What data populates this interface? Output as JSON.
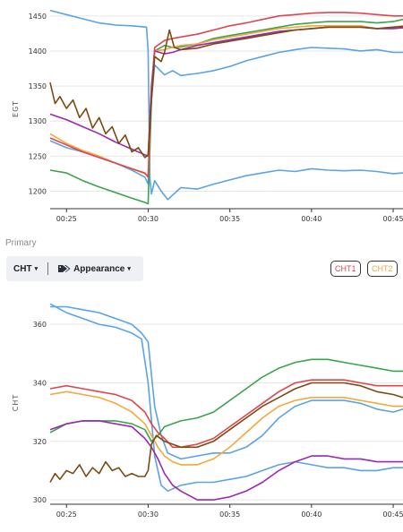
{
  "section_label": "Primary",
  "toolbar": {
    "cht_label": "CHT",
    "appearance_label": "Appearance"
  },
  "chips": [
    {
      "label": "CHT1",
      "color": "#e0454f"
    },
    {
      "label": "CHT2",
      "color": "#f2a93b"
    }
  ],
  "colors": {
    "blue": "#5aa3e6",
    "red": "#e0454f",
    "green": "#3aa34d",
    "orange": "#f2a93b",
    "purple": "#9c27b0",
    "brown": "#7a4a12"
  },
  "chart_data": [
    {
      "type": "line",
      "ylabel": "EGT",
      "ylim": [
        1175,
        1460
      ],
      "yticks": [
        1200,
        1250,
        1300,
        1350,
        1400,
        1450
      ],
      "xlim": [
        24.0,
        45.6
      ],
      "xticks": [
        "00:25",
        "00:30",
        "00:35",
        "00:40",
        "00:45"
      ],
      "xtick_values": [
        25,
        30,
        35,
        40,
        45
      ],
      "grid": true,
      "series": [
        {
          "color": "blue",
          "x": [
            24,
            25,
            26,
            27,
            28,
            29,
            29.9,
            30.0,
            30.1,
            30.2,
            30.4,
            30.8,
            31.2,
            32,
            33,
            34,
            35,
            36,
            37,
            38,
            39,
            40,
            41,
            42,
            43,
            44,
            45,
            45.6
          ],
          "y": [
            1458,
            1452,
            1446,
            1440,
            1437,
            1436,
            1434,
            1400,
            1220,
            1196,
            1215,
            1200,
            1188,
            1205,
            1203,
            1210,
            1216,
            1222,
            1226,
            1230,
            1228,
            1232,
            1230,
            1229,
            1230,
            1228,
            1225,
            1226
          ]
        },
        {
          "color": "blue",
          "x": [
            24,
            25,
            26,
            27,
            28,
            29,
            29.8,
            30.0,
            30.2,
            30.4,
            31,
            31.5,
            32,
            33,
            34,
            35,
            36,
            37,
            38,
            39,
            40,
            41,
            42,
            43,
            44,
            45,
            45.6
          ],
          "y": [
            1272,
            1262,
            1256,
            1248,
            1240,
            1230,
            1220,
            1210,
            1330,
            1380,
            1366,
            1372,
            1365,
            1368,
            1372,
            1378,
            1386,
            1392,
            1398,
            1402,
            1405,
            1404,
            1403,
            1400,
            1402,
            1398,
            1398
          ]
        },
        {
          "color": "green",
          "x": [
            24,
            25,
            26,
            27,
            28,
            29,
            29.8,
            30.0,
            30.2,
            30.4,
            31,
            31.5,
            32,
            33,
            34,
            35,
            36,
            37,
            38,
            39,
            40,
            41,
            42,
            43,
            44,
            45,
            45.6
          ],
          "y": [
            1230,
            1226,
            1215,
            1206,
            1198,
            1190,
            1184,
            1182,
            1330,
            1400,
            1408,
            1405,
            1406,
            1410,
            1418,
            1422,
            1426,
            1430,
            1434,
            1438,
            1440,
            1442,
            1442,
            1442,
            1440,
            1442,
            1445
          ]
        },
        {
          "color": "orange",
          "x": [
            24,
            25,
            26,
            27,
            28,
            29,
            29.8,
            30.0,
            30.2,
            30.4,
            31,
            31.5,
            32,
            33,
            34,
            35,
            36,
            37,
            38,
            39,
            40,
            41,
            42,
            43,
            44,
            45,
            45.6
          ],
          "y": [
            1282,
            1268,
            1258,
            1250,
            1240,
            1232,
            1225,
            1222,
            1340,
            1400,
            1402,
            1405,
            1408,
            1410,
            1416,
            1420,
            1424,
            1428,
            1432,
            1434,
            1436,
            1436,
            1436,
            1436,
            1432,
            1434,
            1436
          ]
        },
        {
          "color": "purple",
          "x": [
            24,
            25,
            26,
            27,
            28,
            29,
            29.8,
            30.0,
            30.2,
            30.4,
            31,
            31.5,
            32,
            33,
            34,
            35,
            36,
            37,
            38,
            39,
            40,
            41,
            42,
            43,
            44,
            45,
            45.6
          ],
          "y": [
            1310,
            1302,
            1292,
            1282,
            1270,
            1260,
            1252,
            1250,
            1350,
            1400,
            1396,
            1398,
            1402,
            1408,
            1412,
            1416,
            1420,
            1424,
            1428,
            1430,
            1432,
            1434,
            1434,
            1434,
            1432,
            1432,
            1433
          ]
        },
        {
          "color": "red",
          "x": [
            24,
            25,
            26,
            27,
            28,
            29,
            29.8,
            30.0,
            30.2,
            30.4,
            31,
            31.5,
            32,
            33,
            34,
            35,
            36,
            37,
            38,
            39,
            40,
            41,
            42,
            43,
            44,
            45,
            45.6
          ],
          "y": [
            1276,
            1266,
            1256,
            1248,
            1240,
            1232,
            1226,
            1220,
            1340,
            1405,
            1415,
            1418,
            1420,
            1424,
            1430,
            1436,
            1440,
            1445,
            1450,
            1452,
            1454,
            1455,
            1455,
            1454,
            1452,
            1450,
            1450
          ]
        },
        {
          "color": "brown",
          "x": [
            24,
            24.3,
            24.6,
            25,
            25.4,
            25.8,
            26.2,
            26.6,
            27,
            27.4,
            27.8,
            28.2,
            28.6,
            29,
            29.4,
            29.8,
            30.0,
            30.2,
            30.4,
            30.8,
            31,
            31.3,
            31.6,
            32,
            33,
            34,
            35,
            36,
            37,
            38,
            39,
            40,
            41,
            42,
            43,
            44,
            45,
            45.6
          ],
          "y": [
            1355,
            1325,
            1335,
            1318,
            1330,
            1305,
            1318,
            1290,
            1305,
            1282,
            1292,
            1268,
            1280,
            1256,
            1262,
            1248,
            1252,
            1330,
            1392,
            1385,
            1398,
            1430,
            1405,
            1402,
            1404,
            1410,
            1414,
            1418,
            1422,
            1426,
            1430,
            1432,
            1434,
            1434,
            1434,
            1432,
            1434,
            1435
          ]
        }
      ]
    },
    {
      "type": "line",
      "ylabel": "CHT",
      "ylim": [
        298.5,
        368
      ],
      "yticks": [
        300,
        320,
        340,
        360
      ],
      "xlim": [
        24.0,
        45.6
      ],
      "xticks": [
        "00:25",
        "00:30",
        "00:35",
        "00:40",
        "00:45"
      ],
      "xtick_values": [
        25,
        30,
        35,
        40,
        45
      ],
      "grid": true,
      "series": [
        {
          "color": "blue",
          "x": [
            24,
            25,
            26,
            27,
            28,
            29,
            29.6,
            30.0,
            30.4,
            30.8,
            31.2,
            32,
            33,
            34,
            35,
            36,
            37,
            38,
            39,
            40,
            41,
            42,
            43,
            44,
            45,
            45.6
          ],
          "y": [
            366,
            366,
            365,
            364,
            362,
            360,
            357,
            354,
            332,
            322,
            316,
            314,
            315,
            316,
            316,
            318,
            322,
            328,
            332,
            334,
            334,
            334,
            333,
            331,
            330,
            331
          ]
        },
        {
          "color": "blue",
          "x": [
            24,
            25,
            26,
            27,
            28,
            29,
            29.6,
            30.0,
            30.4,
            30.8,
            31.2,
            32,
            33,
            34,
            35,
            36,
            37,
            38,
            39,
            40,
            41,
            42,
            43,
            44,
            45,
            45.6
          ],
          "y": [
            367,
            364,
            362,
            360,
            359,
            357,
            355,
            340,
            315,
            305,
            303,
            305,
            306,
            306,
            307,
            308,
            310,
            312,
            313,
            312,
            311,
            311,
            310,
            310,
            311,
            311
          ]
        },
        {
          "color": "green",
          "x": [
            24,
            25,
            26,
            27,
            28,
            29,
            29.8,
            30.2,
            30.6,
            31,
            32,
            33,
            34,
            35,
            36,
            37,
            38,
            39,
            40,
            41,
            42,
            43,
            44,
            45,
            45.6
          ],
          "y": [
            323,
            326,
            327,
            327,
            327,
            326,
            324,
            320,
            322,
            325,
            327,
            328,
            330,
            334,
            338,
            342,
            345,
            347,
            348,
            348,
            347,
            346,
            345,
            344,
            344
          ]
        },
        {
          "color": "red",
          "x": [
            24,
            25,
            26,
            27,
            28,
            29,
            29.8,
            30.2,
            30.6,
            31,
            31.5,
            32,
            33,
            34,
            35,
            36,
            37,
            38,
            39,
            40,
            41,
            42,
            43,
            44,
            45,
            45.6
          ],
          "y": [
            338,
            339,
            338,
            337,
            336,
            334,
            330,
            326,
            323,
            321,
            318,
            318,
            319,
            321,
            325,
            329,
            333,
            337,
            340,
            341,
            341,
            341,
            340,
            339,
            339,
            339
          ]
        },
        {
          "color": "orange",
          "x": [
            24,
            25,
            26,
            27,
            28,
            29,
            29.8,
            30.2,
            30.6,
            31,
            31.5,
            32,
            33,
            34,
            35,
            36,
            37,
            38,
            39,
            40,
            41,
            42,
            43,
            44,
            45,
            45.6
          ],
          "y": [
            336,
            337,
            336,
            335,
            333,
            330,
            326,
            322,
            318,
            315,
            313,
            312,
            312,
            314,
            318,
            323,
            328,
            332,
            334,
            335,
            335,
            335,
            334,
            333,
            332,
            332
          ]
        },
        {
          "color": "purple",
          "x": [
            24,
            25,
            26,
            27,
            28,
            29,
            29.8,
            30.2,
            30.6,
            31,
            31.5,
            32,
            33,
            34,
            35,
            36,
            37,
            38,
            39,
            40,
            41,
            42,
            43,
            44,
            45,
            45.6
          ],
          "y": [
            324,
            326,
            327,
            327,
            326,
            325,
            321,
            318,
            314,
            309,
            305,
            303,
            300,
            300,
            301,
            303,
            306,
            310,
            313,
            315,
            315,
            314,
            314,
            313,
            313,
            313
          ]
        },
        {
          "color": "brown",
          "x": [
            24,
            24.3,
            24.6,
            25,
            25.4,
            25.8,
            26.2,
            26.6,
            27,
            27.4,
            27.8,
            28.2,
            28.6,
            29,
            29.4,
            29.8,
            30.0,
            30.2,
            30.5,
            31,
            31.5,
            32,
            33,
            34,
            35,
            36,
            37,
            38,
            39,
            40,
            41,
            42,
            43,
            44,
            45,
            45.6
          ],
          "y": [
            306,
            309,
            307,
            310,
            309,
            312,
            308,
            311,
            309,
            313,
            310,
            311,
            308,
            309,
            308,
            308,
            310,
            319,
            322,
            320,
            319,
            318,
            318,
            320,
            324,
            328,
            332,
            335,
            338,
            340,
            340,
            340,
            339,
            337,
            336,
            335
          ]
        }
      ]
    }
  ]
}
